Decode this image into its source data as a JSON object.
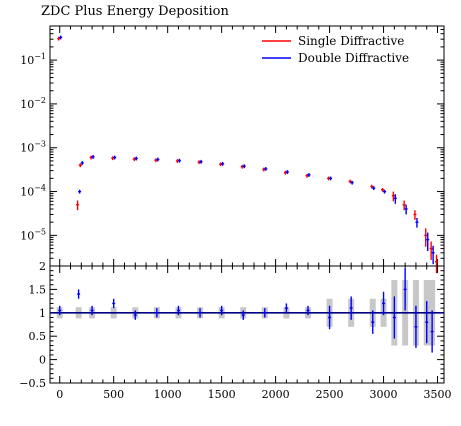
{
  "chart_data": [
    {
      "type": "scatter",
      "title": "ZDC Plus Energy Deposition",
      "xlabel": "",
      "ylabel": "",
      "xlim": [
        -90,
        3560
      ],
      "ylog": true,
      "ylim": [
        2e-06,
        0.6
      ],
      "y_ticks": [
        {
          "value": 0.1,
          "label": "10",
          "exp": "−1"
        },
        {
          "value": 0.01,
          "label": "10",
          "exp": "−2"
        },
        {
          "value": 0.001,
          "label": "10",
          "exp": "−3"
        },
        {
          "value": 0.0001,
          "label": "10",
          "exp": "−4"
        },
        {
          "value": 1e-05,
          "label": "10",
          "exp": "−5"
        }
      ],
      "legend_position": "top-right",
      "series": [
        {
          "name": "Single Diffractive",
          "color": "#ff0000",
          "x": [
            0,
            175,
            200,
            300,
            500,
            700,
            900,
            1100,
            1300,
            1500,
            1700,
            1900,
            2100,
            2300,
            2500,
            2700,
            2900,
            3000,
            3100,
            3200,
            3300,
            3400,
            3450,
            3500
          ],
          "y": [
            0.31,
            5e-05,
            0.0004,
            0.0006,
            0.00058,
            0.00055,
            0.00052,
            0.0005,
            0.00047,
            0.00042,
            0.00037,
            0.00032,
            0.00027,
            0.00023,
            0.0002,
            0.00017,
            0.00013,
            0.00011,
            8e-05,
            5e-05,
            3e-05,
            1e-05,
            5e-06,
            2.5e-06
          ]
        },
        {
          "name": "Double Diffractive",
          "color": "#0000ff",
          "x": [
            0,
            175,
            200,
            300,
            500,
            700,
            900,
            1100,
            1300,
            1500,
            1700,
            1900,
            2100,
            2300,
            2500,
            2700,
            2900,
            3000,
            3100,
            3200,
            3300,
            3400,
            3450
          ],
          "y": [
            0.33,
            0.0001,
            0.00045,
            0.00062,
            0.0006,
            0.00057,
            0.00054,
            0.00051,
            0.00048,
            0.00043,
            0.00038,
            0.00033,
            0.00028,
            0.00024,
            0.0002,
            0.00016,
            0.00012,
            0.0001,
            7e-05,
            4e-05,
            2e-05,
            8e-06,
            4e-06
          ]
        }
      ]
    },
    {
      "type": "scatter",
      "title": "",
      "xlabel": "",
      "ylabel": "",
      "xlim": [
        -90,
        3560
      ],
      "ylim": [
        -0.5,
        2
      ],
      "x_ticks": [
        0,
        500,
        1000,
        1500,
        2000,
        2500,
        3000,
        3500
      ],
      "y_ticks": [
        {
          "value": -0.5,
          "label": "−0.5"
        },
        {
          "value": 0,
          "label": "0"
        },
        {
          "value": 0.5,
          "label": "0.5"
        },
        {
          "value": 1,
          "label": "1"
        },
        {
          "value": 1.5,
          "label": "1.5"
        },
        {
          "value": 2,
          "label": "2"
        }
      ],
      "reference_line": 1,
      "series": [
        {
          "name": "",
          "color": "#0000ff",
          "x": [
            0,
            175,
            300,
            500,
            700,
            900,
            1100,
            1300,
            1500,
            1700,
            1900,
            2100,
            2300,
            2500,
            2700,
            2900,
            3000,
            3100,
            3200,
            3300,
            3400,
            3450
          ],
          "y": [
            1.05,
            1.4,
            1.05,
            1.2,
            0.95,
            1.0,
            1.05,
            1.0,
            1.05,
            0.95,
            1.0,
            1.1,
            1.05,
            0.9,
            1.1,
            0.8,
            1.2,
            0.9,
            1.5,
            0.7,
            0.8,
            0.6
          ]
        }
      ]
    }
  ]
}
